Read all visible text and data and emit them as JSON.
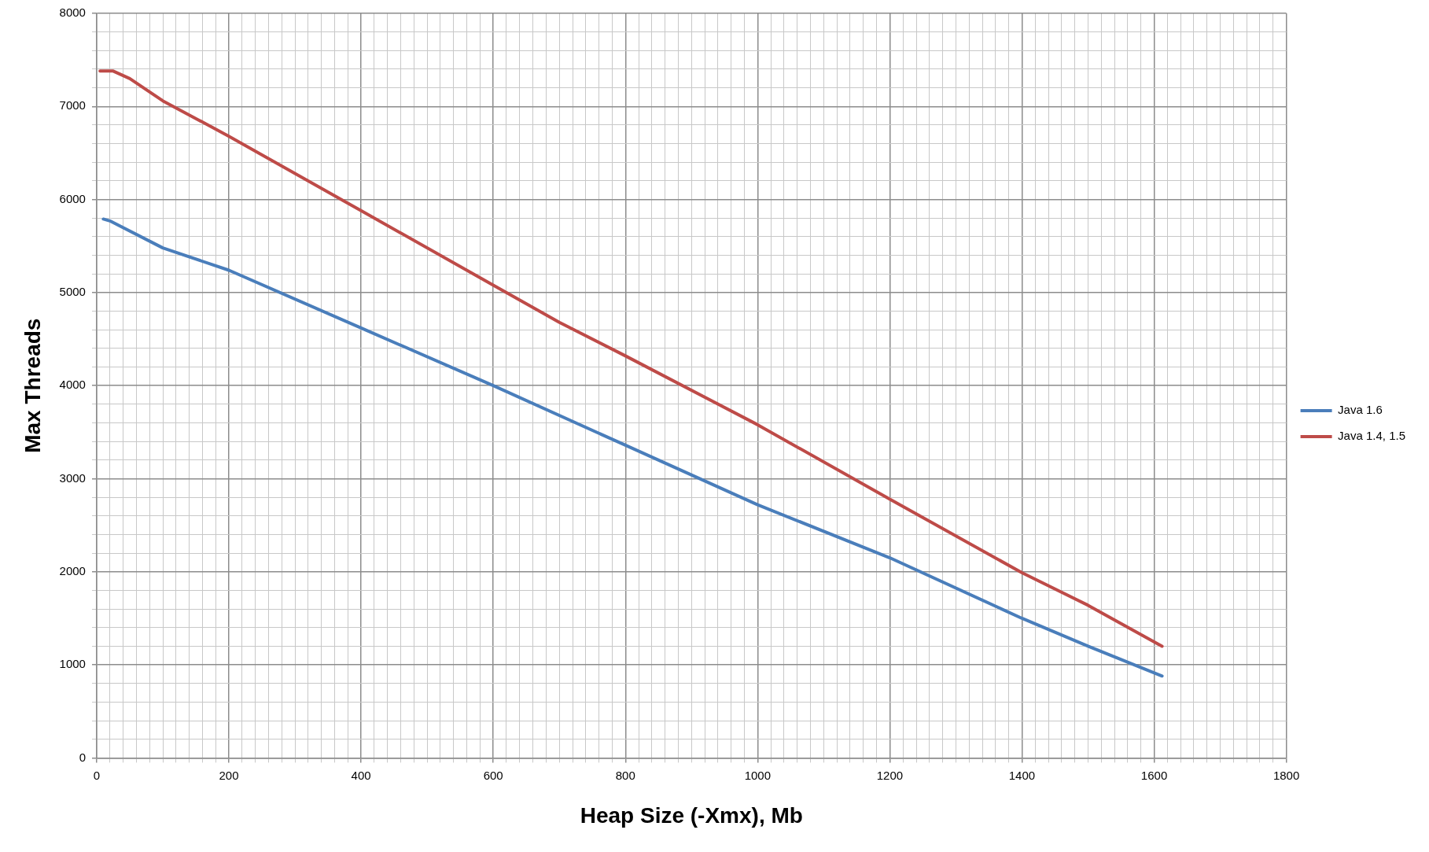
{
  "chart_data": {
    "type": "line",
    "xlabel": "Heap Size (-Xmx), Mb",
    "ylabel": "Max Threads",
    "series": [
      {
        "name": "Java 1.6",
        "color": "#4a7ebb",
        "x": [
          10,
          20,
          100,
          200,
          400,
          600,
          800,
          1000,
          1200,
          1400,
          1500,
          1612
        ],
        "values": [
          5790,
          5770,
          5480,
          5240,
          4620,
          4000,
          3360,
          2720,
          2150,
          1500,
          1200,
          880
        ]
      },
      {
        "name": "Java 1.4, 1.5",
        "color": "#be4b48",
        "x": [
          5,
          25,
          50,
          100,
          200,
          400,
          600,
          700,
          800,
          1000,
          1200,
          1400,
          1500,
          1612
        ],
        "values": [
          7380,
          7380,
          7300,
          7060,
          6680,
          5880,
          5080,
          4680,
          4320,
          3580,
          2780,
          1990,
          1640,
          1200
        ]
      }
    ],
    "xlim": [
      0,
      1800
    ],
    "ylim": [
      0,
      8000
    ],
    "xticks": [
      0,
      {
        "value": 20,
        "label": null
      },
      {
        "value": 40,
        "label": null
      },
      {
        "value": 60,
        "label": null
      },
      {
        "value": 80,
        "label": null
      },
      {
        "value": 100,
        "label": null
      },
      {
        "value": 120,
        "label": null
      },
      {
        "value": 140,
        "label": null
      },
      {
        "value": 160,
        "label": null
      },
      {
        "value": 180,
        "label": null
      },
      200,
      {
        "value": 220,
        "label": null
      },
      {
        "value": 240,
        "label": null
      },
      {
        "value": 260,
        "label": null
      },
      {
        "value": 280,
        "label": null
      },
      {
        "value": 300,
        "label": null
      },
      {
        "value": 320,
        "label": null
      },
      {
        "value": 340,
        "label": null
      },
      {
        "value": 360,
        "label": null
      },
      {
        "value": 380,
        "label": null
      },
      400,
      {
        "value": 420,
        "label": null
      },
      {
        "value": 440,
        "label": null
      },
      {
        "value": 460,
        "label": null
      },
      {
        "value": 480,
        "label": null
      },
      {
        "value": 500,
        "label": null
      },
      {
        "value": 520,
        "label": null
      },
      {
        "value": 540,
        "label": null
      },
      {
        "value": 560,
        "label": null
      },
      {
        "value": 580,
        "label": null
      },
      600,
      {
        "value": 620,
        "label": null
      },
      {
        "value": 640,
        "label": null
      },
      {
        "value": 660,
        "label": null
      },
      {
        "value": 680,
        "label": null
      },
      {
        "value": 700,
        "label": null
      },
      {
        "value": 720,
        "label": null
      },
      {
        "value": 740,
        "label": null
      },
      {
        "value": 760,
        "label": null
      },
      {
        "value": 780,
        "label": null
      },
      800,
      {
        "value": 820,
        "label": null
      },
      {
        "value": 840,
        "label": null
      },
      {
        "value": 860,
        "label": null
      },
      {
        "value": 880,
        "label": null
      },
      {
        "value": 900,
        "label": null
      },
      {
        "value": 920,
        "label": null
      },
      {
        "value": 940,
        "label": null
      },
      {
        "value": 960,
        "label": null
      },
      {
        "value": 980,
        "label": null
      },
      1000,
      {
        "value": 1020,
        "label": null
      },
      {
        "value": 1040,
        "label": null
      },
      {
        "value": 1060,
        "label": null
      },
      {
        "value": 1080,
        "label": null
      },
      {
        "value": 1100,
        "label": null
      },
      {
        "value": 1120,
        "label": null
      },
      {
        "value": 1140,
        "label": null
      },
      {
        "value": 1160,
        "label": null
      },
      {
        "value": 1180,
        "label": null
      },
      1200,
      {
        "value": 1220,
        "label": null
      },
      {
        "value": 1240,
        "label": null
      },
      {
        "value": 1260,
        "label": null
      },
      {
        "value": 1280,
        "label": null
      },
      {
        "value": 1300,
        "label": null
      },
      {
        "value": 1320,
        "label": null
      },
      {
        "value": 1340,
        "label": null
      },
      {
        "value": 1360,
        "label": null
      },
      {
        "value": 1380,
        "label": null
      },
      1400,
      {
        "value": 1420,
        "label": null
      },
      {
        "value": 1440,
        "label": null
      },
      {
        "value": 1460,
        "label": null
      },
      {
        "value": 1480,
        "label": null
      },
      {
        "value": 1500,
        "label": null
      },
      {
        "value": 1520,
        "label": null
      },
      {
        "value": 1540,
        "label": null
      },
      {
        "value": 1560,
        "label": null
      },
      {
        "value": 1580,
        "label": null
      },
      1600,
      {
        "value": 1620,
        "label": null
      },
      {
        "value": 1640,
        "label": null
      },
      {
        "value": 1660,
        "label": null
      },
      {
        "value": 1680,
        "label": null
      },
      {
        "value": 1700,
        "label": null
      },
      {
        "value": 1720,
        "label": null
      },
      {
        "value": 1740,
        "label": null
      },
      {
        "value": 1760,
        "label": null
      },
      {
        "value": 1780,
        "label": null
      },
      1800
    ],
    "yticks": [
      0,
      {
        "value": 200,
        "label": null
      },
      {
        "value": 400,
        "label": null
      },
      {
        "value": 600,
        "label": null
      },
      {
        "value": 800,
        "label": null
      },
      1000,
      {
        "value": 1200,
        "label": null
      },
      {
        "value": 1400,
        "label": null
      },
      {
        "value": 1600,
        "label": null
      },
      {
        "value": 1800,
        "label": null
      },
      2000,
      {
        "value": 2200,
        "label": null
      },
      {
        "value": 2400,
        "label": null
      },
      {
        "value": 2600,
        "label": null
      },
      {
        "value": 2800,
        "label": null
      },
      3000,
      {
        "value": 3200,
        "label": null
      },
      {
        "value": 3400,
        "label": null
      },
      {
        "value": 3600,
        "label": null
      },
      {
        "value": 3800,
        "label": null
      },
      4000,
      {
        "value": 4200,
        "label": null
      },
      {
        "value": 4400,
        "label": null
      },
      {
        "value": 4600,
        "label": null
      },
      {
        "value": 4800,
        "label": null
      },
      5000,
      {
        "value": 5200,
        "label": null
      },
      {
        "value": 5400,
        "label": null
      },
      {
        "value": 5600,
        "label": null
      },
      {
        "value": 5800,
        "label": null
      },
      6000,
      {
        "value": 6200,
        "label": null
      },
      {
        "value": 6400,
        "label": null
      },
      {
        "value": 6600,
        "label": null
      },
      {
        "value": 6800,
        "label": null
      },
      7000,
      {
        "value": 7200,
        "label": null
      },
      {
        "value": 7400,
        "label": null
      },
      {
        "value": 7600,
        "label": null
      },
      {
        "value": 7800,
        "label": null
      },
      8000
    ],
    "grid": true,
    "legend": "right",
    "marker": "none",
    "line_style": "solid"
  }
}
